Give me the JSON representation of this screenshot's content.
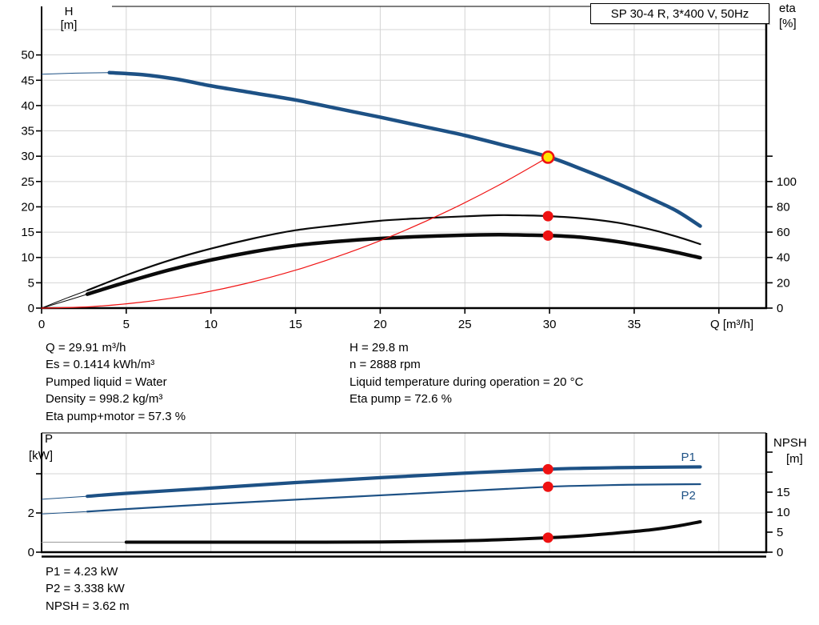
{
  "header": {
    "title_box": "SP 30-4 R, 3*400 V, 50Hz"
  },
  "colors": {
    "curve_blue": "#1d5185",
    "curve_black": "#0a0a0a",
    "curve_red": "#f01414",
    "marker_red": "#ee1111",
    "marker_yellow": "#ffe400",
    "grid": "#d4d4d4",
    "axis": "#000000",
    "label_blue": "#1d5185"
  },
  "chart_data": [
    {
      "type": "line",
      "name": "qh-eta-chart",
      "title": "SP 30-4 R, 3*400 V, 50Hz",
      "x_axis": {
        "label": "Q [m³/h]",
        "min": 0,
        "max": 42.8,
        "tick_labels": [
          0,
          5,
          10,
          15,
          20,
          25,
          30,
          35
        ],
        "unlabeled_ticks": [
          40
        ],
        "grid": [
          5,
          10,
          15,
          20,
          25,
          30,
          35,
          40
        ]
      },
      "y_left": {
        "label_lines": [
          "H",
          "[m]"
        ],
        "min": 0,
        "max": 59.6,
        "tick_labels": [
          0,
          5,
          10,
          15,
          20,
          25,
          30,
          35,
          40,
          45,
          50
        ],
        "unlabeled_ticks": [],
        "grid": [
          5,
          10,
          15,
          20,
          25,
          30,
          35,
          40,
          45,
          50,
          55
        ]
      },
      "y_right": {
        "label_lines": [
          "eta",
          "[%]"
        ],
        "min": 0,
        "max": 238,
        "tick_labels": [
          0,
          20,
          40,
          60,
          80,
          100
        ],
        "unlabeled_ticks": [
          120
        ],
        "grid": []
      },
      "series": [
        {
          "name": "eta-pump-motor-curve",
          "axis": "right",
          "color_key": "curve_black",
          "width": 4.5,
          "thin_until": 2.7,
          "points": [
            [
              0,
              0
            ],
            [
              1.5,
              6
            ],
            [
              2.7,
              11
            ],
            [
              5,
              20.5
            ],
            [
              7.5,
              30
            ],
            [
              10,
              38
            ],
            [
              12.5,
              44.5
            ],
            [
              15,
              49.5
            ],
            [
              17.5,
              52.7
            ],
            [
              20,
              55
            ],
            [
              22.5,
              56.6
            ],
            [
              25,
              57.6
            ],
            [
              27,
              58
            ],
            [
              28.5,
              57.7
            ],
            [
              30,
              57.3
            ],
            [
              32,
              55.8
            ],
            [
              34,
              52.5
            ],
            [
              36,
              48
            ],
            [
              37.5,
              44
            ],
            [
              38.9,
              39.8
            ]
          ]
        },
        {
          "name": "eta-pump-curve",
          "axis": "right",
          "color_key": "curve_black",
          "width": 2.2,
          "thin_until": 2.7,
          "points": [
            [
              0,
              0
            ],
            [
              1.5,
              8
            ],
            [
              2.7,
              14
            ],
            [
              5,
              26
            ],
            [
              7.5,
              37.5
            ],
            [
              10,
              47
            ],
            [
              12.5,
              55
            ],
            [
              15,
              61.5
            ],
            [
              17.5,
              65.5
            ],
            [
              20,
              69
            ],
            [
              22.5,
              71
            ],
            [
              25,
              72.5
            ],
            [
              27,
              73.4
            ],
            [
              28.5,
              73.2
            ],
            [
              30,
              72.6
            ],
            [
              32,
              70.8
            ],
            [
              34,
              67.5
            ],
            [
              36,
              62
            ],
            [
              37.5,
              56.5
            ],
            [
              38.9,
              50.5
            ]
          ]
        },
        {
          "name": "system-curve",
          "axis": "left",
          "color_key": "curve_red",
          "width": 1.2,
          "points": [
            [
              0,
              0
            ],
            [
              3,
              0.3
            ],
            [
              6,
              1.2
            ],
            [
              9,
              2.7
            ],
            [
              12,
              4.8
            ],
            [
              15,
              7.49
            ],
            [
              18,
              10.79
            ],
            [
              21,
              14.69
            ],
            [
              24,
              19.19
            ],
            [
              27,
              24.28
            ],
            [
              29.91,
              29.8
            ]
          ]
        },
        {
          "name": "head-curve",
          "axis": "left",
          "color_key": "curve_blue",
          "width": 4.5,
          "thin_until": 2.7,
          "points": [
            [
              0,
              46.2
            ],
            [
              2,
              46.4
            ],
            [
              4,
              46.5
            ],
            [
              6,
              46.1
            ],
            [
              8,
              45.2
            ],
            [
              10,
              43.9
            ],
            [
              12.5,
              42.5
            ],
            [
              15,
              41.1
            ],
            [
              17.5,
              39.4
            ],
            [
              20,
              37.7
            ],
            [
              22.5,
              35.9
            ],
            [
              25,
              34.1
            ],
            [
              27.5,
              32.0
            ],
            [
              30,
              29.8
            ],
            [
              32,
              27.3
            ],
            [
              34,
              24.6
            ],
            [
              36,
              21.6
            ],
            [
              37.5,
              19.2
            ],
            [
              38.9,
              16.2
            ]
          ]
        }
      ],
      "series_labels": [],
      "markers": [
        {
          "name": "eta-pump-point",
          "axis": "right",
          "q": 29.91,
          "value": 72.6,
          "style": "dot"
        },
        {
          "name": "eta-pump-motor-point",
          "axis": "right",
          "q": 29.91,
          "value": 57.3,
          "style": "dot"
        },
        {
          "name": "duty-point",
          "axis": "left",
          "q": 29.91,
          "value": 29.8,
          "style": "operating"
        }
      ]
    },
    {
      "type": "line",
      "name": "power-npsh-chart",
      "title": "",
      "x_axis": {
        "label": "",
        "min": 0,
        "max": 42.8,
        "tick_labels": [],
        "unlabeled_ticks": [],
        "grid": [
          5,
          10,
          15,
          20,
          25,
          30,
          35,
          40
        ]
      },
      "y_left": {
        "label_lines": [
          "P",
          "[kW]"
        ],
        "min": 0,
        "max": 6.08,
        "tick_labels": [
          0,
          2
        ],
        "unlabeled_ticks": [
          4
        ],
        "grid": [
          2,
          4
        ]
      },
      "y_right": {
        "label_lines": [
          "NPSH",
          "[m]"
        ],
        "min": 0,
        "max": 29.8,
        "tick_labels": [
          0,
          5,
          10,
          15
        ],
        "unlabeled_ticks": [
          20,
          25
        ],
        "grid": []
      },
      "series": [
        {
          "name": "npsh-curve",
          "axis": "right",
          "color_key": "curve_black",
          "width": 4,
          "thin_until": 2.7,
          "thin_color": "#9a9a9a",
          "points": [
            [
              0,
              2.5
            ],
            [
              5,
              2.5
            ],
            [
              10,
              2.5
            ],
            [
              15,
              2.5
            ],
            [
              20,
              2.55
            ],
            [
              24,
              2.75
            ],
            [
              27,
              3.1
            ],
            [
              30,
              3.62
            ],
            [
              32,
              4.1
            ],
            [
              34,
              4.8
            ],
            [
              36,
              5.6
            ],
            [
              37.5,
              6.5
            ],
            [
              38.9,
              7.6
            ]
          ]
        },
        {
          "name": "p2-curve",
          "axis": "left",
          "color_key": "curve_blue",
          "width": 2.2,
          "thin_until": 2.7,
          "points": [
            [
              0,
              1.95
            ],
            [
              2.7,
              2.07
            ],
            [
              5,
              2.2
            ],
            [
              10,
              2.45
            ],
            [
              15,
              2.68
            ],
            [
              20,
              2.9
            ],
            [
              25,
              3.12
            ],
            [
              30,
              3.34
            ],
            [
              32,
              3.39
            ],
            [
              34,
              3.43
            ],
            [
              36,
              3.45
            ],
            [
              38.9,
              3.47
            ]
          ]
        },
        {
          "name": "p1-curve",
          "axis": "left",
          "color_key": "curve_blue",
          "width": 4.2,
          "thin_until": 2.7,
          "points": [
            [
              0,
              2.7
            ],
            [
              2.7,
              2.85
            ],
            [
              5,
              3.0
            ],
            [
              10,
              3.27
            ],
            [
              15,
              3.55
            ],
            [
              20,
              3.8
            ],
            [
              25,
              4.03
            ],
            [
              30,
              4.23
            ],
            [
              32,
              4.28
            ],
            [
              34,
              4.31
            ],
            [
              36,
              4.33
            ],
            [
              38.9,
              4.35
            ]
          ]
        }
      ],
      "series_labels": [
        {
          "text": "P1",
          "q": 38.2,
          "axis": "left",
          "value": 4.85
        },
        {
          "text": "P2",
          "q": 38.2,
          "axis": "left",
          "value": 2.9
        }
      ],
      "markers": [
        {
          "name": "p1-point",
          "axis": "left",
          "q": 29.91,
          "value": 4.23,
          "style": "dot"
        },
        {
          "name": "p2-point",
          "axis": "left",
          "q": 29.91,
          "value": 3.338,
          "style": "dot"
        },
        {
          "name": "npsh-point",
          "axis": "right",
          "q": 29.91,
          "value": 3.62,
          "style": "dot"
        }
      ]
    }
  ],
  "annotations_top": {
    "left": [
      "Q = 29.91 m³/h",
      "Es = 0.1414 kWh/m³",
      "Pumped liquid = Water",
      "Density = 998.2 kg/m³",
      "Eta pump+motor = 57.3 %"
    ],
    "right": [
      "H = 29.8 m",
      "n = 2888 rpm",
      "Liquid temperature during operation = 20 °C",
      "Eta pump = 72.6 %"
    ]
  },
  "annotations_bottom": [
    "P1 = 4.23 kW",
    "P2 = 3.338 kW",
    "NPSH = 3.62 m"
  ]
}
